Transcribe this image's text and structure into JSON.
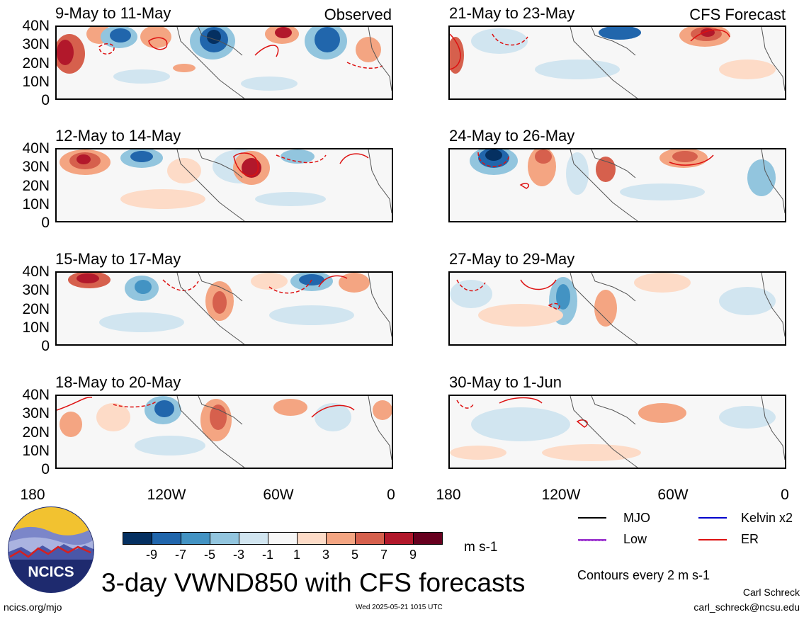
{
  "panels": {
    "observed": [
      {
        "title": "9-May to 11-May",
        "label": "Observed"
      },
      {
        "title": "12-May to 14-May",
        "label": ""
      },
      {
        "title": "15-May to 17-May",
        "label": ""
      },
      {
        "title": "18-May to 20-May",
        "label": ""
      }
    ],
    "forecast": [
      {
        "title": "21-May to 23-May",
        "label": "CFS Forecast"
      },
      {
        "title": "24-May to 26-May",
        "label": ""
      },
      {
        "title": "27-May to 29-May",
        "label": ""
      },
      {
        "title": "30-May to 1-Jun",
        "label": ""
      }
    ]
  },
  "axes": {
    "y_ticks": [
      "40N",
      "30N",
      "20N",
      "10N",
      "0"
    ],
    "x_ticks": [
      "180",
      "120W",
      "60W",
      "0"
    ]
  },
  "colorbar": {
    "labels": [
      "-9",
      "-7",
      "-5",
      "-3",
      "-1",
      "1",
      "3",
      "5",
      "7",
      "9"
    ],
    "colors": [
      "#053061",
      "#2166ac",
      "#4393c3",
      "#92c5de",
      "#d1e5f0",
      "#f7f7f7",
      "#fddbc7",
      "#f4a582",
      "#d6604d",
      "#b2182b",
      "#67001f"
    ],
    "units": "m s-1"
  },
  "legend": {
    "items": [
      {
        "label": "MJO",
        "color": "#000000"
      },
      {
        "label": "Kelvin x2",
        "color": "#0000cc"
      },
      {
        "label": "Low",
        "color": "#9933cc"
      },
      {
        "label": "ER",
        "color": "#dd1111"
      }
    ],
    "contours_note": "Contours every 2 m s-1"
  },
  "logo_text": "NCICS",
  "main_title": "3-day VWND850 with CFS forecasts",
  "footer": {
    "site": "ncics.org/mjo",
    "timestamp": "Wed 2025-05-21 1015 UTC",
    "author": "Carl Schreck",
    "email": "carl_schreck@ncsu.edu"
  }
}
